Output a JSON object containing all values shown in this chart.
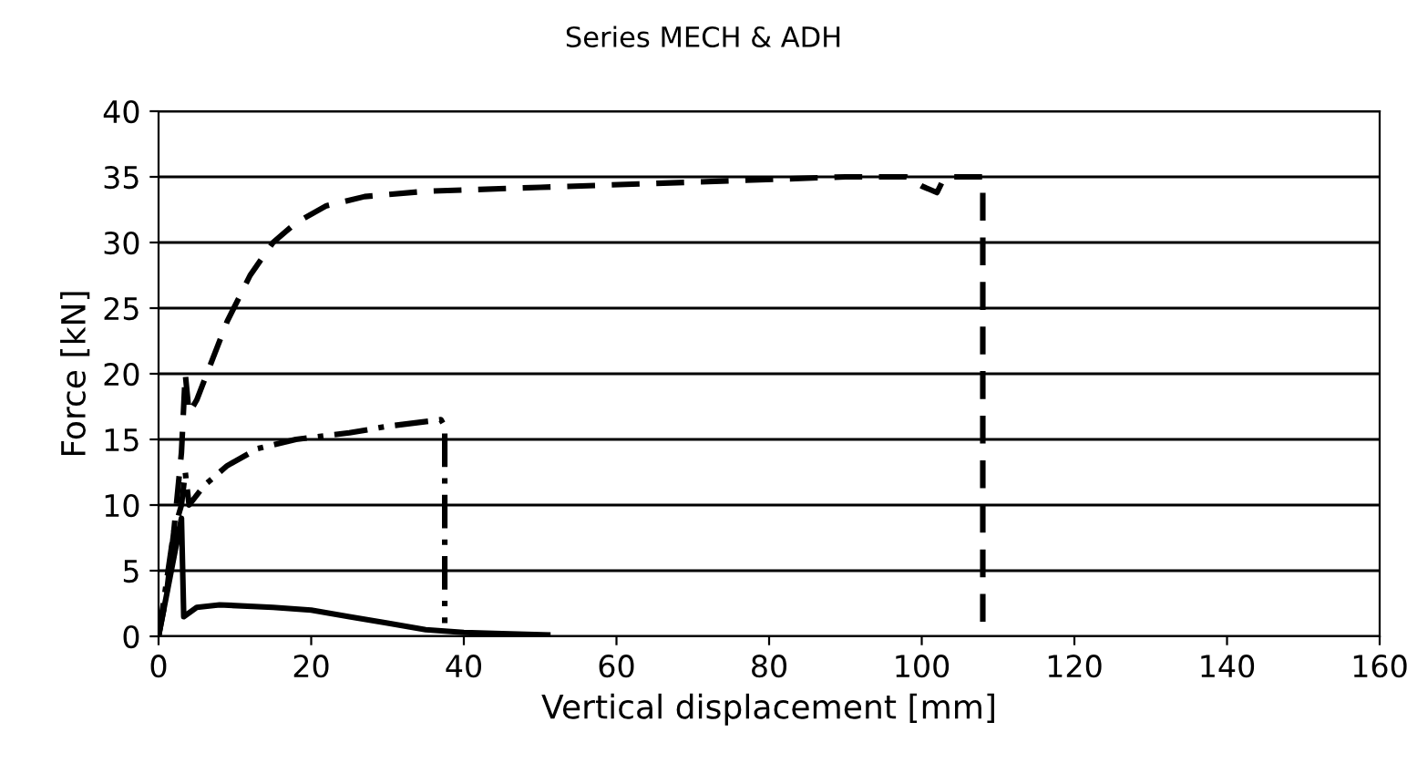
{
  "chart_data": {
    "type": "line",
    "title": "Series MECH & ADH",
    "xlabel": "Vertical displacement [mm]",
    "ylabel": "Force [kN]",
    "xlim": [
      0,
      160
    ],
    "xticks": [
      0,
      20,
      40,
      60,
      80,
      100,
      120,
      140,
      160
    ],
    "ylim": [
      0,
      40
    ],
    "yticks": [
      0,
      5,
      10,
      15,
      20,
      25,
      30,
      35,
      40
    ],
    "grid": "y",
    "legend": false,
    "marker": "none",
    "series": [
      {
        "color": "#000000",
        "line_style": "dashed",
        "x": [
          0,
          1,
          2,
          3,
          3.5,
          4,
          5,
          7,
          9,
          12,
          15,
          18,
          22,
          27,
          35,
          50,
          70,
          90,
          98,
          100,
          102,
          103,
          108,
          108
        ],
        "values": [
          0,
          3,
          8,
          14,
          20,
          17,
          18,
          21,
          24,
          27.5,
          30,
          31.5,
          32.8,
          33.5,
          33.9,
          34.2,
          34.6,
          35,
          35,
          34.3,
          33.8,
          35,
          35,
          0
        ]
      },
      {
        "color": "#000000",
        "line_style": "dashdot",
        "x": [
          0,
          1,
          2,
          3,
          3.5,
          4,
          6,
          9,
          13,
          18,
          25,
          30,
          37,
          37.5,
          37.5
        ],
        "values": [
          0,
          4,
          8,
          10,
          12.5,
          10,
          11.5,
          13,
          14.3,
          15,
          15.5,
          16,
          16.5,
          16,
          1
        ]
      },
      {
        "color": "#000000",
        "line_style": "solid",
        "x": [
          0,
          1,
          2,
          3,
          3.3,
          5,
          8,
          15,
          20,
          25,
          30,
          35,
          40,
          45,
          51
        ],
        "values": [
          0,
          3,
          6,
          9,
          1.5,
          2.2,
          2.4,
          2.2,
          2,
          1.5,
          1,
          0.5,
          0.3,
          0.2,
          0.1
        ]
      }
    ]
  }
}
